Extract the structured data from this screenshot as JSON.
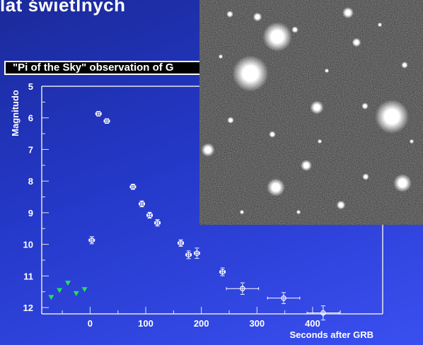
{
  "slide": {
    "heading": "lat świetlnych",
    "plot_title": "\"Pi of the Sky\" observation of G",
    "sky_image_desc": "sky-field-image"
  },
  "chart_data": {
    "type": "scatter",
    "xlabel": "Seconds after GRB",
    "ylabel": "Magnitudo",
    "xlim": [
      -87,
      526
    ],
    "ylim": [
      12.2,
      5
    ],
    "y_inverted": true,
    "x_ticks": [
      0,
      100,
      200,
      300,
      400
    ],
    "y_ticks": [
      5,
      6,
      7,
      8,
      9,
      10,
      11,
      12
    ],
    "grid": false,
    "colors": {
      "points": "#ffffff",
      "limits": "#22e05a",
      "axis": "#e6e6e6"
    },
    "series": [
      {
        "name": "",
        "marker": "cross-errorbar",
        "points": [
          {
            "x": 15,
            "y": 5.87,
            "xerr": 5,
            "yerr": 0.05
          },
          {
            "x": 30,
            "y": 6.1,
            "xerr": 5,
            "yerr": 0.05
          },
          {
            "x": 77,
            "y": 8.18,
            "xerr": 5,
            "yerr": 0.06
          },
          {
            "x": 93,
            "y": 8.72,
            "xerr": 5,
            "yerr": 0.07
          },
          {
            "x": 107,
            "y": 9.08,
            "xerr": 5,
            "yerr": 0.07
          },
          {
            "x": 121,
            "y": 9.32,
            "xerr": 5,
            "yerr": 0.08
          },
          {
            "x": 3,
            "y": 9.87,
            "xerr": 5,
            "yerr": 0.09
          },
          {
            "x": 163,
            "y": 9.96,
            "xerr": 5,
            "yerr": 0.08
          },
          {
            "x": 177,
            "y": 10.33,
            "xerr": 5,
            "yerr": 0.1
          },
          {
            "x": 192,
            "y": 10.28,
            "xerr": 5,
            "yerr": 0.14
          },
          {
            "x": 238,
            "y": 10.87,
            "xerr": 5,
            "yerr": 0.1
          },
          {
            "x": 274,
            "y": 11.4,
            "xerr": 29,
            "yerr": 0.16
          },
          {
            "x": 348,
            "y": 11.7,
            "xerr": 29,
            "yerr": 0.15
          },
          {
            "x": 419,
            "y": 12.17,
            "xerr": 29,
            "yerr": 0.2
          }
        ]
      },
      {
        "name": "",
        "marker": "triangle-down",
        "points": [
          {
            "x": -70,
            "y": 11.67
          },
          {
            "x": -55,
            "y": 11.45
          },
          {
            "x": -40,
            "y": 11.22
          },
          {
            "x": -25,
            "y": 11.55
          },
          {
            "x": -10,
            "y": 11.42
          }
        ]
      }
    ]
  }
}
